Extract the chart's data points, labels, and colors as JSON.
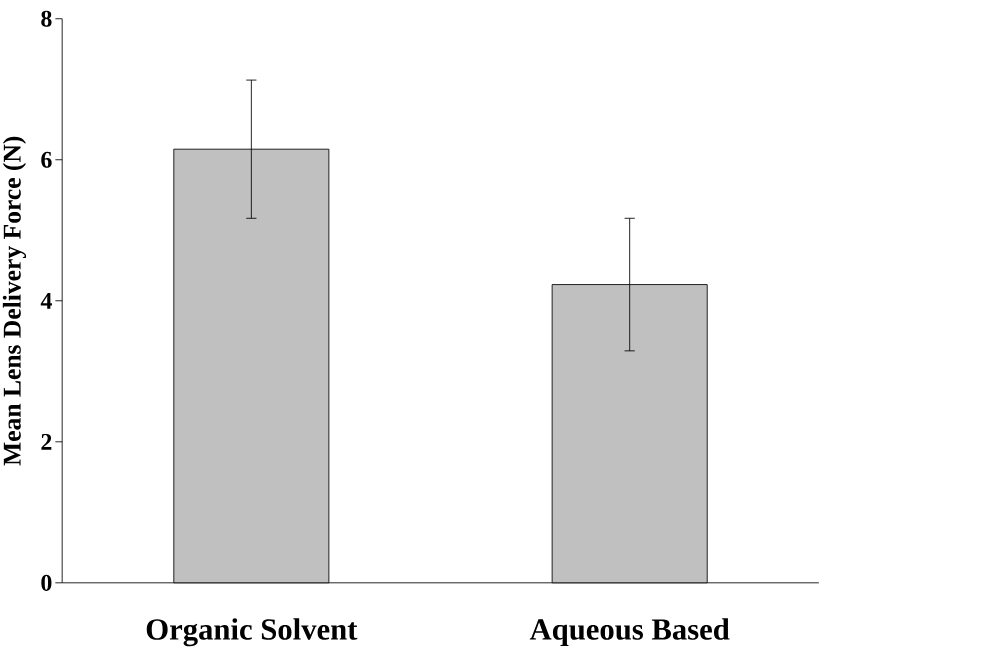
{
  "chart_data": {
    "type": "bar",
    "ylabel": "Mean Lens Delivery Force (N)",
    "categories": [
      "Organic Solvent",
      "Aqueous Based"
    ],
    "values": [
      6.15,
      4.23
    ],
    "errors": [
      0.98,
      0.94
    ],
    "color": "#c0c0c0",
    "ylim": [
      0,
      8
    ],
    "yticks": [
      0,
      2,
      4,
      6,
      8
    ]
  }
}
